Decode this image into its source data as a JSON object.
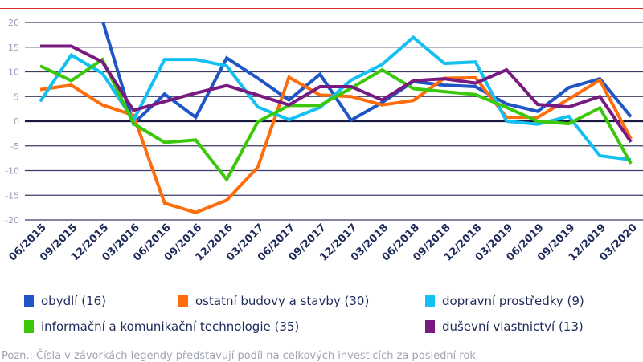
{
  "chart_data": {
    "type": "line",
    "categories": [
      "06/2015",
      "09/2015",
      "12/2015",
      "03/2016",
      "06/2016",
      "09/2016",
      "12/2016",
      "03/2017",
      "06/2017",
      "09/2017",
      "12/2017",
      "03/2018",
      "06/2018",
      "09/2018",
      "12/2018",
      "03/2019",
      "06/2019",
      "09/2019",
      "12/2019",
      "03/2020"
    ],
    "ylim": [
      -20,
      20
    ],
    "yticks": [
      20,
      15,
      10,
      5,
      0,
      -5,
      -10,
      -15,
      -20
    ],
    "grid": true,
    "legend_position": "bottom",
    "series": [
      {
        "name": "obydlí (16)",
        "color": "#1f55c4",
        "values": [
          null,
          null,
          20.5,
          -0.5,
          5.5,
          0.8,
          12.8,
          8.7,
          4.3,
          9.5,
          0.2,
          3.8,
          8.0,
          7.3,
          7.0,
          3.5,
          2.0,
          6.8,
          8.6,
          0.9
        ]
      },
      {
        "name": "ostatní budovy a stavby (30)",
        "color": "#ff6c0c",
        "values": [
          6.4,
          7.3,
          3.3,
          1.2,
          -16.6,
          -18.5,
          -16.0,
          -9.3,
          8.9,
          5.3,
          5.0,
          3.3,
          4.2,
          8.7,
          8.8,
          0.8,
          0.8,
          4.5,
          8.3,
          -3.6
        ]
      },
      {
        "name": "dopravní prostředky (9)",
        "color": "#14bff2",
        "values": [
          4.0,
          13.4,
          9.7,
          0.2,
          12.5,
          12.5,
          11.2,
          2.9,
          0.3,
          2.8,
          8.3,
          11.5,
          17.0,
          11.7,
          12.0,
          0.0,
          -0.6,
          1.0,
          -7.0,
          -7.8
        ]
      },
      {
        "name": "informační a komunikační technologie (35)",
        "color": "#3cc80a",
        "values": [
          11.2,
          8.2,
          12.5,
          -0.5,
          -4.3,
          -3.8,
          -11.8,
          -0.1,
          3.2,
          3.2,
          6.7,
          10.4,
          6.6,
          6.0,
          5.4,
          2.8,
          0.0,
          -0.5,
          2.7,
          -8.6
        ]
      },
      {
        "name": "duševní vlastnictví (13)",
        "color": "#771b80",
        "values": [
          15.2,
          15.2,
          12.0,
          2.2,
          4.0,
          5.7,
          7.2,
          5.3,
          3.3,
          7.0,
          7.0,
          4.3,
          8.2,
          8.6,
          7.7,
          10.4,
          3.4,
          2.9,
          5.0,
          -4.2
        ]
      }
    ],
    "note": "Pozn.: Čísla v závorkách legendy představují podíl na celkových investicích za poslední rok"
  }
}
